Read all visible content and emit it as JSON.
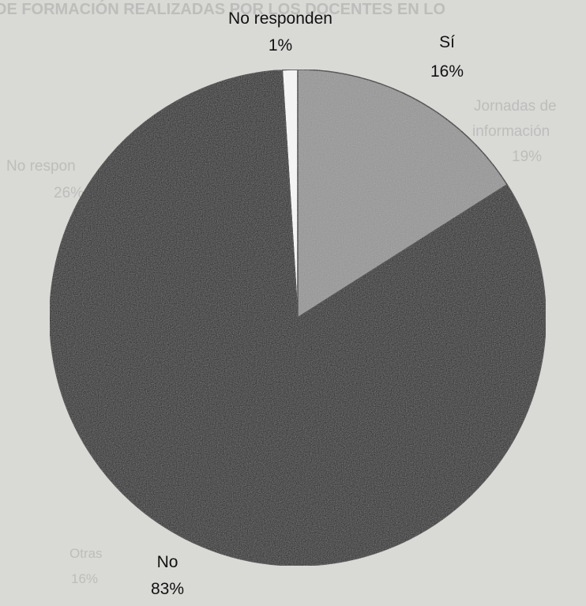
{
  "chart_data": {
    "type": "pie",
    "series": [
      {
        "name": "No responden",
        "value": 1,
        "label": "1%"
      },
      {
        "name": "Sí",
        "value": 16,
        "label": "16%"
      },
      {
        "name": "No",
        "value": 83,
        "label": "83%"
      }
    ],
    "colors": {
      "No responden": "#f2f2f2",
      "Sí": "#8f8f8f",
      "No": "#0a0a0a"
    }
  },
  "background_text": {
    "header": "DE FORMACIÓN REALIZADAS POR LOS DOCENTES EN LO",
    "jornadas_line1": "Jornadas de",
    "jornadas_line2": "información",
    "jornadas_pct": "19%",
    "no_respon_line1": "No respon",
    "no_respon_pct": "26%",
    "otras_label": "Otras",
    "otras_pct": "16%"
  }
}
